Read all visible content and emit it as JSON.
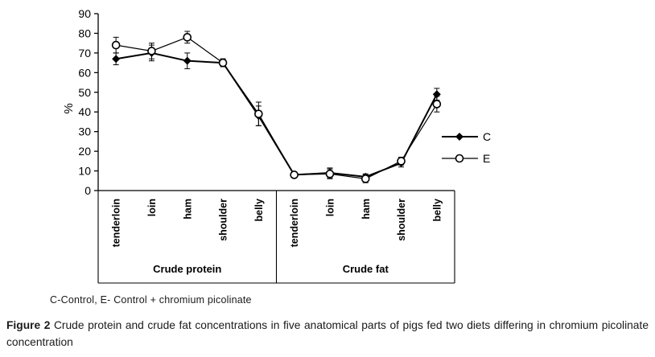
{
  "chart_data": {
    "type": "line",
    "title": "",
    "xlabel": "",
    "ylabel": "%",
    "ylim": [
      0,
      90
    ],
    "ytick_step": 10,
    "grid": false,
    "legend_position": "right",
    "categories": [
      "tenderloin",
      "loin",
      "ham",
      "shoulder",
      "belly",
      "tenderloin",
      "loin",
      "ham",
      "shoulder",
      "belly"
    ],
    "groups": [
      {
        "label": "Crude protein",
        "span": 5
      },
      {
        "label": "Crude fat",
        "span": 5
      }
    ],
    "series": [
      {
        "name": "C",
        "marker": "diamond",
        "color": "#000000",
        "values": [
          67,
          70,
          66,
          65,
          38,
          8,
          9,
          7,
          14,
          49
        ],
        "errors": [
          3,
          4,
          4,
          2,
          5,
          1,
          2.5,
          1.5,
          2,
          3
        ]
      },
      {
        "name": "E",
        "marker": "circle",
        "color": "#000000",
        "values": [
          74,
          71,
          78,
          65,
          39,
          8,
          8.5,
          6,
          15,
          44
        ],
        "errors": [
          4,
          4,
          3,
          2,
          6,
          1,
          2.5,
          2,
          2,
          4
        ]
      }
    ]
  },
  "notes": {
    "legend_note": "C-Control, E- Control + chromium picolinate"
  },
  "caption": {
    "label": "Figure 2",
    "text": " Crude protein and crude fat concentrations in five anatomical parts of pigs fed two diets differing in chromium picolinate concentration"
  }
}
